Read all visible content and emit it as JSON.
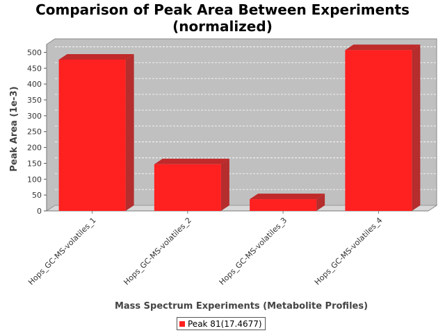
{
  "chart_data": {
    "type": "bar",
    "title_lines": [
      "Comparison of Peak Area Between Experiments",
      "(normalized)"
    ],
    "xlabel": "Mass Spectrum Experiments (Metabolite Profiles)",
    "ylabel": "Peak Area (1e-3)",
    "categories": [
      "Hops_GC-MS-volatiles_1",
      "Hops_GC-MS-volatiles_2",
      "Hops_GC-MS-volatiles_3",
      "Hops_GC-MS-volatiles_4"
    ],
    "series": [
      {
        "name": "Peak 81(17.4677)",
        "values": [
          477,
          147,
          37,
          507
        ],
        "color": "#ff2020"
      }
    ],
    "ylim": [
      0,
      525
    ],
    "yticks": [
      "0",
      "50",
      "100",
      "150",
      "200",
      "250",
      "300",
      "350",
      "400",
      "450",
      "500"
    ],
    "grid": true,
    "legend_position": "bottom"
  },
  "colors": {
    "plot_background": "#c0c0c0",
    "floor": "#d8d8d8",
    "bar_side": "#b52d2d",
    "bar_top": "#c02a2a",
    "gridline": "#ffffff"
  }
}
